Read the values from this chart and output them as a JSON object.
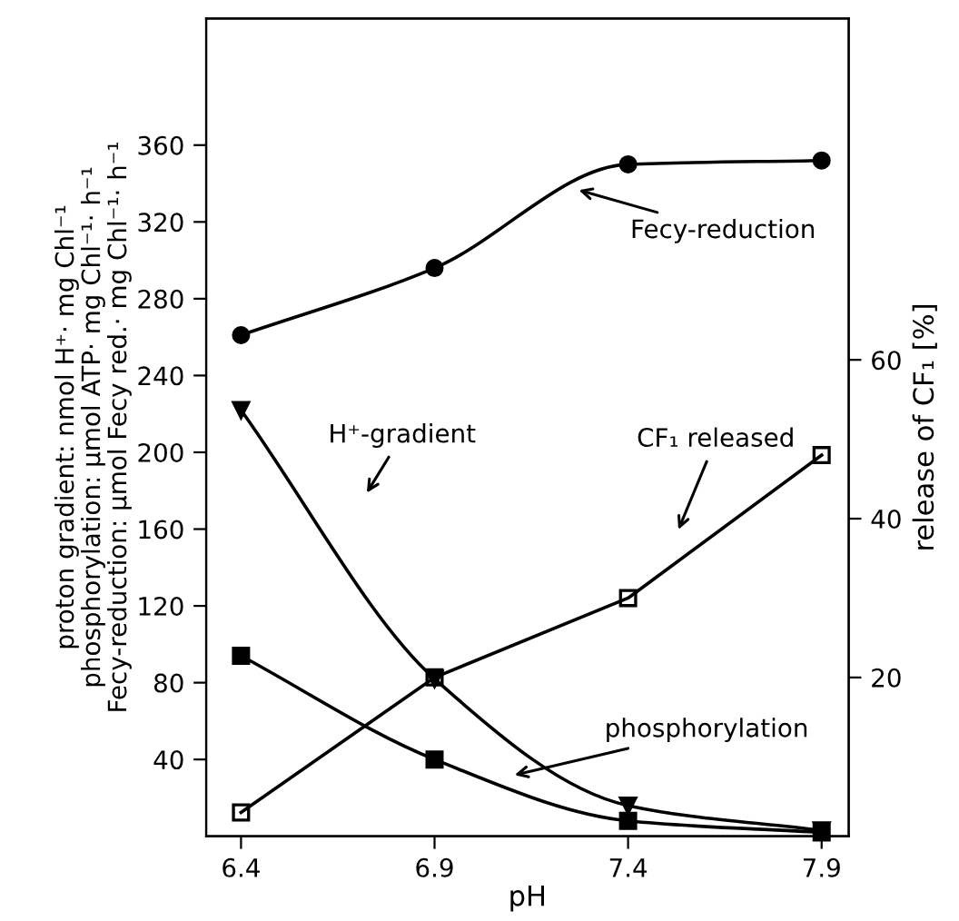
{
  "chart_data": {
    "type": "line",
    "xlabel": "pH",
    "ylabel": "proton gradient: nmol H⁺· mg Chl⁻¹\nphosphorylation: μmol ATP· mg Chl⁻¹· h⁻¹\nFecy-reduction: μmol Fecy red.· mg Chl⁻¹· h⁻¹",
    "y2label": "release of CF₁ [%]",
    "x": [
      6.4,
      6.9,
      7.4,
      7.9
    ],
    "series": [
      {
        "color": "#000000",
        "marker": "circle",
        "values": [
          261,
          296,
          350,
          352
        ]
      },
      {
        "color": "#000000",
        "marker": "triangle",
        "values": [
          222,
          82,
          16,
          3
        ]
      },
      {
        "color": "#000000",
        "marker": "square",
        "values": [
          94,
          40,
          8,
          2
        ]
      },
      {
        "color": "#000000",
        "marker": "square",
        "axis": "y2",
        "values": [
          3,
          20,
          30,
          48
        ]
      }
    ],
    "xlim": [
      6.31,
      7.97
    ],
    "xticks": [
      6.4,
      6.9,
      7.4,
      7.9
    ],
    "ylim": [
      0,
      426
    ],
    "yticks": [
      40,
      80,
      120,
      160,
      200,
      240,
      280,
      320,
      360
    ],
    "y2lim": [
      0,
      103
    ],
    "y2ticks": [
      20,
      40,
      60
    ],
    "annotations": [
      "Fecy-reduction",
      "H⁺-gradient",
      "CF₁ released",
      "phosphorylation"
    ],
    "grid": false,
    "legend": false
  }
}
